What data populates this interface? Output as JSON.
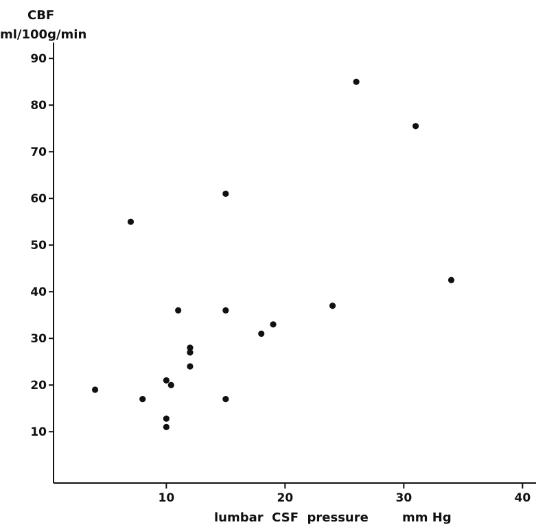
{
  "chart_data": {
    "type": "scatter",
    "title": "",
    "ylabel": "CBF",
    "yunit": "ml/100g/min",
    "xlabel": "lumbar  CSF  pressure",
    "xunit": "mm Hg",
    "xlim": [
      0,
      40
    ],
    "ylim": [
      0,
      95
    ],
    "xticks": [
      10,
      20,
      30,
      40
    ],
    "yticks": [
      10,
      20,
      30,
      40,
      50,
      60,
      70,
      80,
      90
    ],
    "grid": false,
    "series": [
      {
        "points": [
          {
            "x": 4,
            "y": 19
          },
          {
            "x": 7,
            "y": 55
          },
          {
            "x": 8,
            "y": 17
          },
          {
            "x": 10,
            "y": 21
          },
          {
            "x": 10.4,
            "y": 20
          },
          {
            "x": 10,
            "y": 12.8
          },
          {
            "x": 10,
            "y": 11
          },
          {
            "x": 11,
            "y": 36
          },
          {
            "x": 12,
            "y": 28
          },
          {
            "x": 12,
            "y": 27
          },
          {
            "x": 12,
            "y": 24
          },
          {
            "x": 15,
            "y": 61
          },
          {
            "x": 15,
            "y": 36
          },
          {
            "x": 15,
            "y": 17
          },
          {
            "x": 18,
            "y": 31
          },
          {
            "x": 19,
            "y": 33
          },
          {
            "x": 24,
            "y": 37
          },
          {
            "x": 26,
            "y": 85
          },
          {
            "x": 31,
            "y": 75.5
          },
          {
            "x": 34,
            "y": 42.5
          }
        ]
      }
    ]
  }
}
